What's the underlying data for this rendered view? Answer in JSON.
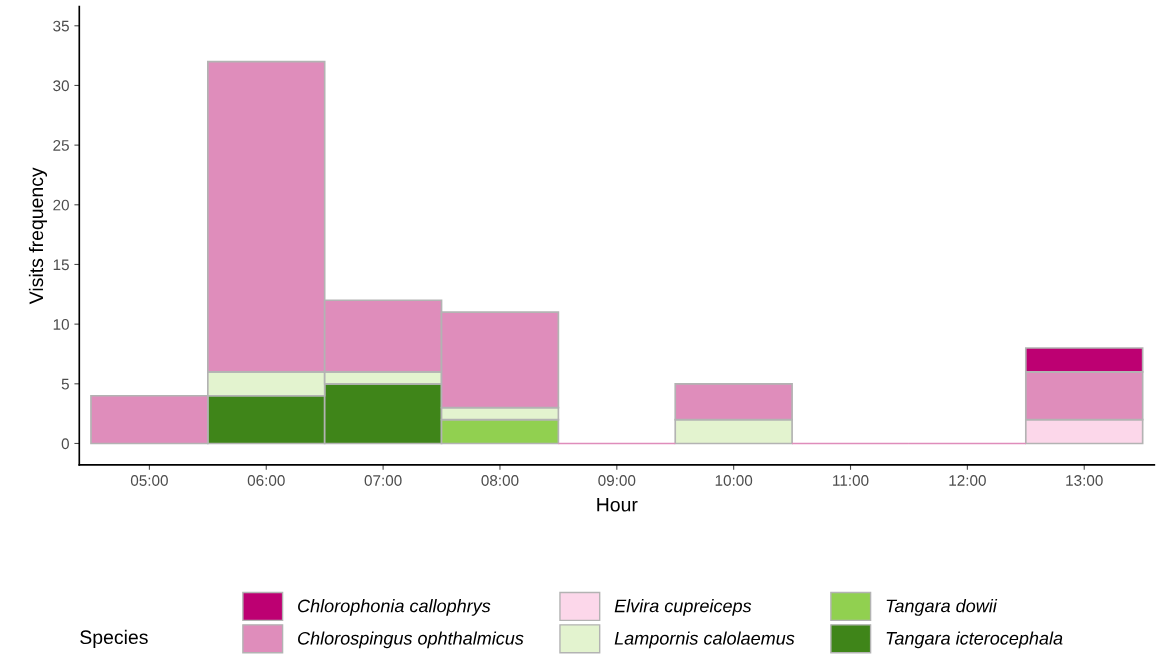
{
  "chart_data": {
    "type": "bar",
    "stacked": true,
    "xlabel": "Hour",
    "ylabel": "Visits frequency",
    "legend_title": "Species",
    "legend": "bottom",
    "grid": false,
    "categories": [
      "05:00",
      "06:00",
      "07:00",
      "08:00",
      "09:00",
      "10:00",
      "11:00",
      "12:00",
      "13:00"
    ],
    "ylim": [
      -1.8,
      36.6
    ],
    "yticks": [
      0,
      5,
      10,
      15,
      20,
      25,
      30,
      35
    ],
    "series": [
      {
        "name": "Tangara icterocephala",
        "color": "#3f8519",
        "values": [
          null,
          4,
          5,
          null,
          null,
          null,
          null,
          null,
          null
        ]
      },
      {
        "name": "Tangara dowii",
        "color": "#91d050",
        "values": [
          null,
          null,
          null,
          2,
          null,
          null,
          null,
          null,
          null
        ]
      },
      {
        "name": "Lampornis calolaemus",
        "color": "#e3f3cf",
        "values": [
          null,
          2,
          1,
          1,
          null,
          2,
          null,
          null,
          null
        ]
      },
      {
        "name": "Elvira cupreiceps",
        "color": "#fcd7ea",
        "values": [
          null,
          null,
          null,
          null,
          null,
          null,
          null,
          null,
          2
        ]
      },
      {
        "name": "Chlorospingus ophthalmicus",
        "color": "#df8dbb",
        "values": [
          4,
          26,
          6,
          8,
          0,
          3,
          0,
          0,
          4
        ]
      },
      {
        "name": "Chlorophonia callophrys",
        "color": "#bd0072",
        "values": [
          null,
          null,
          null,
          null,
          null,
          null,
          null,
          null,
          2
        ]
      }
    ]
  }
}
